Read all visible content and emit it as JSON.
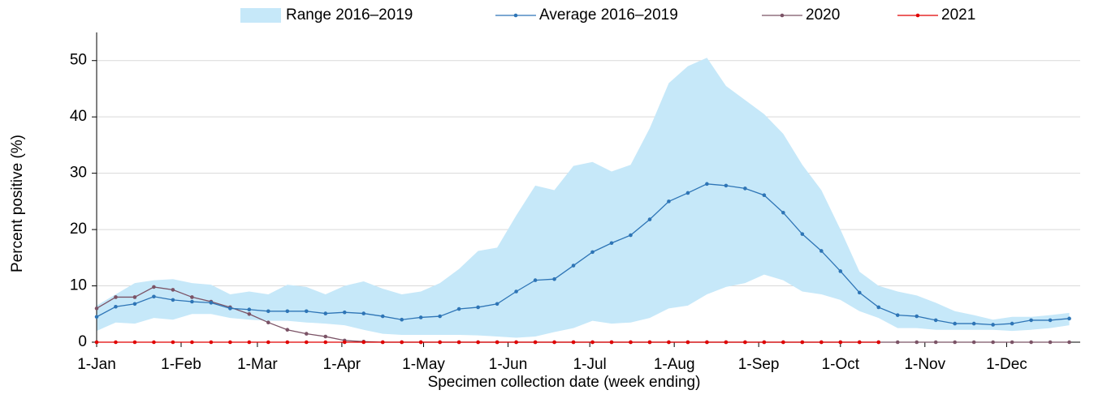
{
  "chart_data": {
    "type": "line",
    "x_label": "Specimen collection date (week ending)",
    "y_label": "Percent positive (%)",
    "x": [
      0,
      7,
      14,
      21,
      28,
      35,
      42,
      49,
      56,
      63,
      70,
      77,
      84,
      91,
      98,
      105,
      112,
      119,
      126,
      133,
      140,
      147,
      154,
      161,
      168,
      175,
      182,
      189,
      196,
      203,
      210,
      217,
      224,
      231,
      238,
      245,
      252,
      259,
      266,
      273,
      280,
      287,
      294,
      301,
      308,
      315,
      322,
      329,
      336,
      343,
      350,
      357
    ],
    "xlim": [
      0,
      361
    ],
    "xticks": [
      {
        "value": 0,
        "label": "1-Jan"
      },
      {
        "value": 31,
        "label": "1-Feb"
      },
      {
        "value": 59,
        "label": "1-Mar"
      },
      {
        "value": 90,
        "label": "1-Apr"
      },
      {
        "value": 120,
        "label": "1-May"
      },
      {
        "value": 151,
        "label": "1-Jun"
      },
      {
        "value": 181,
        "label": "1-Jul"
      },
      {
        "value": 212,
        "label": "1-Aug"
      },
      {
        "value": 243,
        "label": "1-Sep"
      },
      {
        "value": 273,
        "label": "1-Oct"
      },
      {
        "value": 304,
        "label": "1-Nov"
      },
      {
        "value": 334,
        "label": "1-Dec"
      }
    ],
    "ylim": [
      0,
      55
    ],
    "yticks": [
      0,
      10,
      20,
      30,
      40,
      50
    ],
    "grid": true,
    "legend": "top",
    "range": {
      "name": "Range 2016–2019",
      "color": "#c6e8f9",
      "upper": [
        6.5,
        8.5,
        10.5,
        11,
        11.2,
        10.5,
        10.2,
        8.5,
        9,
        8.5,
        10.2,
        9.8,
        8.5,
        10,
        10.8,
        9.5,
        8.5,
        9,
        10.5,
        13,
        16.2,
        16.8,
        22.5,
        27.8,
        27,
        31.3,
        32,
        30.3,
        31.5,
        38,
        46,
        49,
        50.5,
        45.5,
        43,
        40.5,
        37,
        31.5,
        27,
        20,
        12.5,
        10,
        9,
        8.3,
        7,
        5.5,
        4.8,
        4,
        4.5,
        4.5,
        4.8,
        5.2
      ],
      "lower": [
        2,
        3.5,
        3.3,
        4.3,
        4,
        5,
        5,
        4.3,
        4,
        3.8,
        3.8,
        3.5,
        3.3,
        3,
        2.2,
        1.5,
        1.3,
        1.3,
        1.3,
        1.3,
        1.2,
        1,
        0.8,
        1,
        1.8,
        2.5,
        3.8,
        3.3,
        3.5,
        4.3,
        6,
        6.5,
        8.5,
        9.8,
        10.5,
        12,
        11,
        9,
        8.5,
        7.5,
        5.5,
        4.3,
        2.5,
        2.5,
        2.2,
        2.2,
        2.2,
        2.2,
        2,
        2.2,
        2.5,
        3
      ]
    },
    "series": [
      {
        "name": "Average 2016–2019",
        "color": "#2e75b6",
        "values": [
          4.5,
          6.3,
          6.8,
          8.1,
          7.5,
          7.2,
          7.0,
          6.0,
          5.8,
          5.5,
          5.5,
          5.5,
          5.1,
          5.3,
          5.1,
          4.6,
          4.0,
          4.4,
          4.6,
          5.9,
          6.2,
          6.8,
          9.0,
          11.0,
          11.2,
          13.6,
          16.0,
          17.6,
          19.0,
          21.8,
          25.0,
          26.5,
          28.1,
          27.8,
          27.3,
          26.1,
          23.0,
          19.2,
          16.2,
          12.6,
          8.8,
          6.2,
          4.8,
          4.6,
          3.9,
          3.3,
          3.3,
          3.1,
          3.3,
          3.9,
          3.9,
          4.2
        ]
      },
      {
        "name": "2020",
        "color": "#7b5366",
        "values": [
          6,
          8,
          8,
          9.8,
          9.3,
          8,
          7.2,
          6.2,
          5,
          3.5,
          2.2,
          1.5,
          1,
          0.3,
          0.1,
          0,
          0,
          0,
          0,
          0,
          0,
          0,
          0,
          0,
          0,
          0,
          0,
          0,
          0,
          0,
          0,
          0,
          0,
          0,
          0,
          0,
          0,
          0,
          0,
          0,
          0,
          0,
          0,
          0,
          0,
          0,
          0,
          0,
          0,
          0,
          0,
          0
        ]
      },
      {
        "name": "2021",
        "color": "#e00000",
        "values": [
          0,
          0,
          0,
          0,
          0,
          0,
          0,
          0,
          0,
          0,
          0,
          0,
          0,
          0,
          0,
          0,
          0,
          0,
          0,
          0,
          0,
          0,
          0,
          0,
          0,
          0,
          0,
          0,
          0,
          0,
          0,
          0,
          0,
          0,
          0,
          0,
          0,
          0,
          0,
          0,
          0,
          0,
          null,
          null,
          null,
          null,
          null,
          null,
          null,
          null,
          null,
          null
        ]
      }
    ]
  }
}
